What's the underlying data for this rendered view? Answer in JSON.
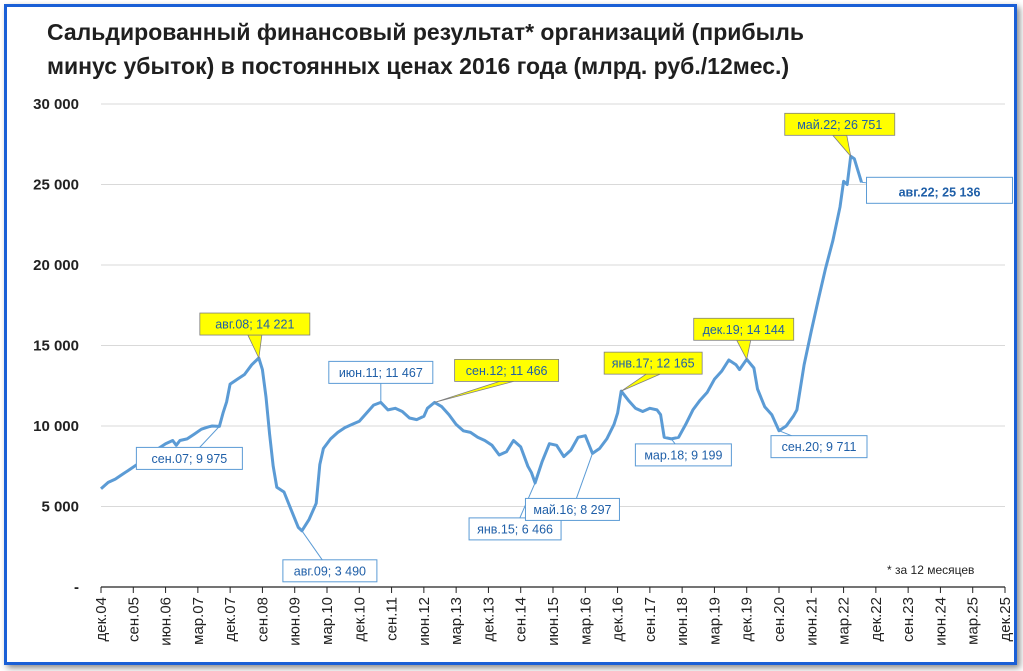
{
  "chart_data": {
    "type": "line",
    "title": "Сальдированный финансовый результат* организаций (прибыль\nминус убыток) в постоянных ценах 2016 года (млрд. руб./12мес.)",
    "footnote": "* за 12 месяцев",
    "ylim": [
      0,
      30000
    ],
    "y_ticks": [
      {
        "value": 0,
        "label": "-"
      },
      {
        "value": 5000,
        "label": "5 000"
      },
      {
        "value": 10000,
        "label": "10 000"
      },
      {
        "value": 15000,
        "label": "15 000"
      },
      {
        "value": 20000,
        "label": "20 000"
      },
      {
        "value": 25000,
        "label": "25 000"
      },
      {
        "value": 30000,
        "label": "30 000"
      }
    ],
    "x_ticks": [
      "дек.04",
      "сен.05",
      "июн.06",
      "мар.07",
      "дек.07",
      "сен.08",
      "июн.09",
      "мар.10",
      "дек.10",
      "сен.11",
      "июн.12",
      "мар.13",
      "дек.13",
      "сен.14",
      "июн.15",
      "мар.16",
      "дек.16",
      "сен.17",
      "июн.18",
      "мар.19",
      "дек.19",
      "сен.20",
      "июн.21",
      "мар.22",
      "дек.22",
      "сен.23",
      "июн.24",
      "мар.25",
      "дек.25"
    ],
    "series": [
      {
        "color": "#5b9bd5",
        "points": [
          [
            "2004-12",
            6100
          ],
          [
            "2005-02",
            6500
          ],
          [
            "2005-04",
            6700
          ],
          [
            "2005-06",
            7000
          ],
          [
            "2005-08",
            7300
          ],
          [
            "2005-10",
            7600
          ],
          [
            "2005-12",
            7900
          ],
          [
            "2006-02",
            8300
          ],
          [
            "2006-04",
            8600
          ],
          [
            "2006-06",
            8900
          ],
          [
            "2006-08",
            9100
          ],
          [
            "2006-09",
            8800
          ],
          [
            "2006-10",
            9100
          ],
          [
            "2006-12",
            9200
          ],
          [
            "2007-02",
            9500
          ],
          [
            "2007-04",
            9800
          ],
          [
            "2007-06",
            9950
          ],
          [
            "2007-07",
            10000
          ],
          [
            "2007-09",
            9975
          ],
          [
            "2007-10",
            10800
          ],
          [
            "2007-11",
            11500
          ],
          [
            "2007-12",
            12600
          ],
          [
            "2008-02",
            12900
          ],
          [
            "2008-04",
            13200
          ],
          [
            "2008-06",
            13800
          ],
          [
            "2008-08",
            14221
          ],
          [
            "2008-09",
            13500
          ],
          [
            "2008-10",
            11800
          ],
          [
            "2008-11",
            9500
          ],
          [
            "2008-12",
            7500
          ],
          [
            "2009-01",
            6200
          ],
          [
            "2009-03",
            5900
          ],
          [
            "2009-05",
            4800
          ],
          [
            "2009-07",
            3700
          ],
          [
            "2009-08",
            3490
          ],
          [
            "2009-10",
            4200
          ],
          [
            "2009-12",
            5200
          ],
          [
            "2010-01",
            7600
          ],
          [
            "2010-02",
            8600
          ],
          [
            "2010-04",
            9200
          ],
          [
            "2010-06",
            9600
          ],
          [
            "2010-08",
            9900
          ],
          [
            "2010-10",
            10100
          ],
          [
            "2010-12",
            10300
          ],
          [
            "2011-02",
            10800
          ],
          [
            "2011-04",
            11300
          ],
          [
            "2011-06",
            11467
          ],
          [
            "2011-08",
            11000
          ],
          [
            "2011-10",
            11100
          ],
          [
            "2011-12",
            10900
          ],
          [
            "2012-02",
            10500
          ],
          [
            "2012-04",
            10400
          ],
          [
            "2012-06",
            10600
          ],
          [
            "2012-07",
            11100
          ],
          [
            "2012-09",
            11466
          ],
          [
            "2012-11",
            11200
          ],
          [
            "2013-01",
            10700
          ],
          [
            "2013-03",
            10100
          ],
          [
            "2013-05",
            9700
          ],
          [
            "2013-07",
            9600
          ],
          [
            "2013-09",
            9300
          ],
          [
            "2013-11",
            9100
          ],
          [
            "2014-01",
            8800
          ],
          [
            "2014-03",
            8200
          ],
          [
            "2014-05",
            8400
          ],
          [
            "2014-07",
            9100
          ],
          [
            "2014-09",
            8700
          ],
          [
            "2014-11",
            7500
          ],
          [
            "2014-12",
            7100
          ],
          [
            "2015-01",
            6466
          ],
          [
            "2015-03",
            7800
          ],
          [
            "2015-05",
            8900
          ],
          [
            "2015-07",
            8800
          ],
          [
            "2015-09",
            8100
          ],
          [
            "2015-11",
            8500
          ],
          [
            "2016-01",
            9300
          ],
          [
            "2016-03",
            9400
          ],
          [
            "2016-05",
            8297
          ],
          [
            "2016-07",
            8600
          ],
          [
            "2016-09",
            9200
          ],
          [
            "2016-11",
            10100
          ],
          [
            "2016-12",
            10800
          ],
          [
            "2017-01",
            12165
          ],
          [
            "2017-03",
            11600
          ],
          [
            "2017-05",
            11100
          ],
          [
            "2017-07",
            10900
          ],
          [
            "2017-09",
            11100
          ],
          [
            "2017-11",
            11000
          ],
          [
            "2017-12",
            10700
          ],
          [
            "2018-01",
            9300
          ],
          [
            "2018-03",
            9199
          ],
          [
            "2018-05",
            9300
          ],
          [
            "2018-07",
            10100
          ],
          [
            "2018-09",
            11000
          ],
          [
            "2018-11",
            11600
          ],
          [
            "2019-01",
            12100
          ],
          [
            "2019-03",
            12900
          ],
          [
            "2019-05",
            13400
          ],
          [
            "2019-07",
            14100
          ],
          [
            "2019-09",
            13800
          ],
          [
            "2019-10",
            13500
          ],
          [
            "2019-12",
            14144
          ],
          [
            "2020-02",
            13600
          ],
          [
            "2020-03",
            12300
          ],
          [
            "2020-05",
            11200
          ],
          [
            "2020-07",
            10700
          ],
          [
            "2020-09",
            9711
          ],
          [
            "2020-11",
            10000
          ],
          [
            "2021-01",
            10600
          ],
          [
            "2021-02",
            11000
          ],
          [
            "2021-04",
            13800
          ],
          [
            "2021-06",
            15900
          ],
          [
            "2021-08",
            17900
          ],
          [
            "2021-10",
            19800
          ],
          [
            "2021-12",
            21500
          ],
          [
            "2022-02",
            23600
          ],
          [
            "2022-03",
            25200
          ],
          [
            "2022-04",
            25000
          ],
          [
            "2022-05",
            26751
          ],
          [
            "2022-06",
            26600
          ],
          [
            "2022-08",
            25136
          ]
        ]
      }
    ],
    "annotations": [
      {
        "label": "сен.07;  9 975",
        "x": "2007-09",
        "y": 9975,
        "style": "outline",
        "bold": false
      },
      {
        "label": "авг.08;  14 221",
        "x": "2008-08",
        "y": 14221,
        "style": "highlight",
        "bold": false
      },
      {
        "label": "авг.09;  3 490",
        "x": "2009-08",
        "y": 3490,
        "style": "outline",
        "bold": false
      },
      {
        "label": "июн.11;  11 467",
        "x": "2011-06",
        "y": 11467,
        "style": "outline",
        "bold": false
      },
      {
        "label": "сен.12;  11 466",
        "x": "2012-09",
        "y": 11466,
        "style": "highlight",
        "bold": false
      },
      {
        "label": "янв.15;  6 466",
        "x": "2015-01",
        "y": 6466,
        "style": "outline",
        "bold": false
      },
      {
        "label": "май.16;  8 297",
        "x": "2016-05",
        "y": 8297,
        "style": "outline",
        "bold": false
      },
      {
        "label": "янв.17;  12 165",
        "x": "2017-01",
        "y": 12165,
        "style": "highlight",
        "bold": false
      },
      {
        "label": "мар.18;  9 199",
        "x": "2018-03",
        "y": 9199,
        "style": "outline",
        "bold": false
      },
      {
        "label": "дек.19;  14 144",
        "x": "2019-12",
        "y": 14144,
        "style": "highlight",
        "bold": false
      },
      {
        "label": "сен.20;  9 711",
        "x": "2020-09",
        "y": 9711,
        "style": "outline",
        "bold": false
      },
      {
        "label": "май.22;  26 751",
        "x": "2022-05",
        "y": 26751,
        "style": "highlight",
        "bold": false
      },
      {
        "label": "авг.22;  25 136",
        "x": "2022-08",
        "y": 25136,
        "style": "outline",
        "bold": true
      }
    ],
    "colors": {
      "line": "#5b9bd5",
      "frame": "#1a5fd6",
      "highlight_fill": "#ffff00",
      "label_text": "#1f5fa8",
      "highlight_text": "#1f5fa8"
    }
  }
}
